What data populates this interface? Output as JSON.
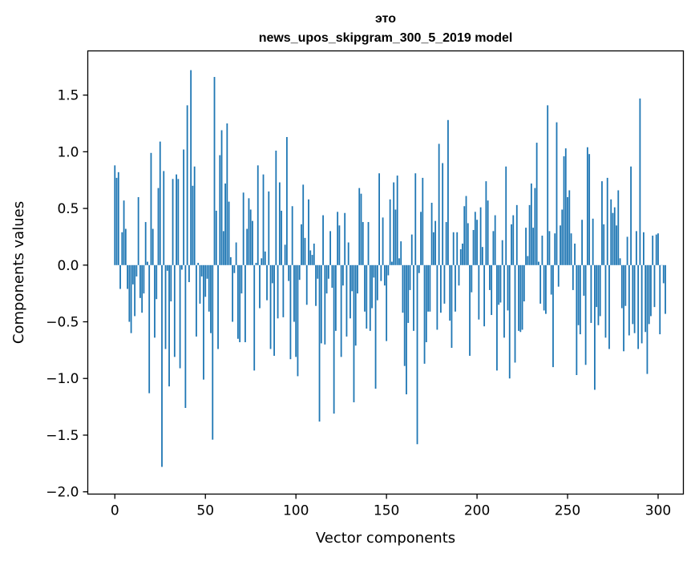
{
  "chart_data": {
    "type": "bar",
    "title": "это\nnews_upos_skipgram_300_5_2019 model",
    "title_lines": [
      "это",
      "news_upos_skipgram_300_5_2019 model"
    ],
    "xlabel": "Vector components",
    "ylabel": "Components values",
    "xlim": [
      -14.95,
      313.95
    ],
    "ylim": [
      -2.02,
      1.89
    ],
    "xticks": [
      0,
      50,
      100,
      150,
      200,
      250,
      300
    ],
    "xtick_labels": [
      "0",
      "50",
      "100",
      "150",
      "200",
      "250",
      "300"
    ],
    "yticks": [
      -2.0,
      -1.5,
      -1.0,
      -0.5,
      0.0,
      0.5,
      1.0,
      1.5
    ],
    "ytick_labels": [
      "−2.0",
      "−1.5",
      "−1.0",
      "−0.5",
      "0.0",
      "0.5",
      "1.0",
      "1.5"
    ],
    "bar_color": "#1f77b4",
    "grid": false,
    "series": [
      {
        "name": "это",
        "values": [
          0.88,
          0.77,
          0.82,
          -0.21,
          0.29,
          0.57,
          0.32,
          -0.21,
          -0.5,
          -0.6,
          -0.17,
          -0.45,
          -0.1,
          0.6,
          -0.29,
          -0.42,
          -0.25,
          0.38,
          0.03,
          -1.13,
          0.99,
          0.32,
          -0.64,
          -0.3,
          0.68,
          1.09,
          -1.78,
          0.83,
          -0.74,
          -0.05,
          -1.07,
          -0.32,
          0.76,
          -0.81,
          0.8,
          0.76,
          -0.91,
          -0.04,
          1.02,
          -1.26,
          1.41,
          -0.15,
          1.72,
          0.7,
          0.87,
          -0.63,
          0.02,
          -0.34,
          -0.1,
          -1.01,
          -0.28,
          -0.12,
          -0.41,
          -0.6,
          -1.54,
          1.66,
          0.48,
          -0.74,
          0.97,
          1.19,
          0.3,
          0.72,
          1.25,
          0.56,
          0.07,
          -0.5,
          -0.07,
          0.2,
          -0.65,
          -0.68,
          -0.25,
          0.64,
          -0.68,
          0.32,
          0.59,
          0.49,
          0.39,
          -0.93,
          0.02,
          0.88,
          -0.38,
          0.06,
          0.8,
          0.12,
          -0.31,
          0.65,
          -0.74,
          -0.16,
          -0.8,
          1.01,
          -0.47,
          0.73,
          0.48,
          -0.46,
          0.18,
          1.13,
          -0.14,
          -0.83,
          0.52,
          -0.5,
          -0.81,
          -0.98,
          -0.13,
          0.36,
          0.71,
          0.24,
          -0.35,
          0.58,
          0.13,
          0.09,
          0.19,
          -0.36,
          -0.12,
          -1.38,
          -0.69,
          0.44,
          -0.7,
          -0.25,
          -0.12,
          0.3,
          -0.2,
          -1.31,
          -0.58,
          0.47,
          0.35,
          -0.81,
          -0.18,
          0.46,
          -0.63,
          0.2,
          -0.47,
          -0.23,
          -1.21,
          -0.71,
          -0.25,
          0.68,
          0.63,
          0.38,
          -0.41,
          -0.56,
          0.38,
          -0.58,
          -0.38,
          -0.11,
          -1.09,
          -0.31,
          0.81,
          -0.14,
          0.42,
          -0.18,
          -0.67,
          -0.09,
          0.58,
          0.03,
          0.73,
          0.49,
          0.79,
          0.06,
          0.21,
          -0.42,
          -0.89,
          -1.14,
          -0.51,
          -0.22,
          0.27,
          -0.58,
          0.81,
          -1.58,
          -0.07,
          0.47,
          0.77,
          -0.87,
          -0.68,
          -0.41,
          -0.41,
          0.55,
          0.29,
          0.39,
          -0.57,
          1.07,
          -0.42,
          0.9,
          -0.34,
          0.38,
          1.28,
          -0.49,
          -0.73,
          0.29,
          -0.41,
          0.29,
          -0.18,
          0.14,
          0.19,
          0.52,
          0.61,
          0.37,
          -0.8,
          -0.24,
          0.31,
          0.47,
          0.4,
          -0.48,
          0.51,
          0.16,
          -0.54,
          0.74,
          0.57,
          -0.22,
          -0.44,
          0.3,
          0.44,
          -0.93,
          -0.35,
          -0.33,
          0.22,
          -0.64,
          0.87,
          -0.4,
          -1.0,
          0.36,
          0.44,
          -0.86,
          0.53,
          -0.58,
          -0.59,
          -0.57,
          -0.32,
          0.33,
          0.08,
          0.53,
          0.72,
          0.33,
          0.68,
          1.08,
          0.03,
          -0.34,
          0.26,
          -0.4,
          -0.43,
          1.41,
          0.3,
          -0.26,
          -0.9,
          0.28,
          1.26,
          -0.19,
          0.35,
          0.49,
          0.96,
          1.03,
          0.6,
          0.66,
          0.28,
          -0.22,
          0.19,
          -0.97,
          -0.53,
          -0.61,
          0.4,
          -0.27,
          -0.88,
          1.04,
          0.98,
          -0.51,
          0.41,
          -1.1,
          -0.37,
          -0.53,
          -0.45,
          0.74,
          0.36,
          -0.64,
          0.77,
          -0.74,
          0.58,
          0.46,
          0.51,
          0.35,
          0.66,
          0.06,
          -0.38,
          -0.76,
          -0.36,
          0.25,
          -0.62,
          0.87,
          -0.52,
          -0.6,
          0.3,
          -0.74,
          1.47,
          -0.69,
          0.29,
          -0.59,
          -0.96,
          -0.52,
          -0.45,
          0.26,
          -0.37,
          0.27,
          0.28,
          -0.61,
          0.0,
          -0.16,
          -0.43
        ]
      }
    ]
  }
}
